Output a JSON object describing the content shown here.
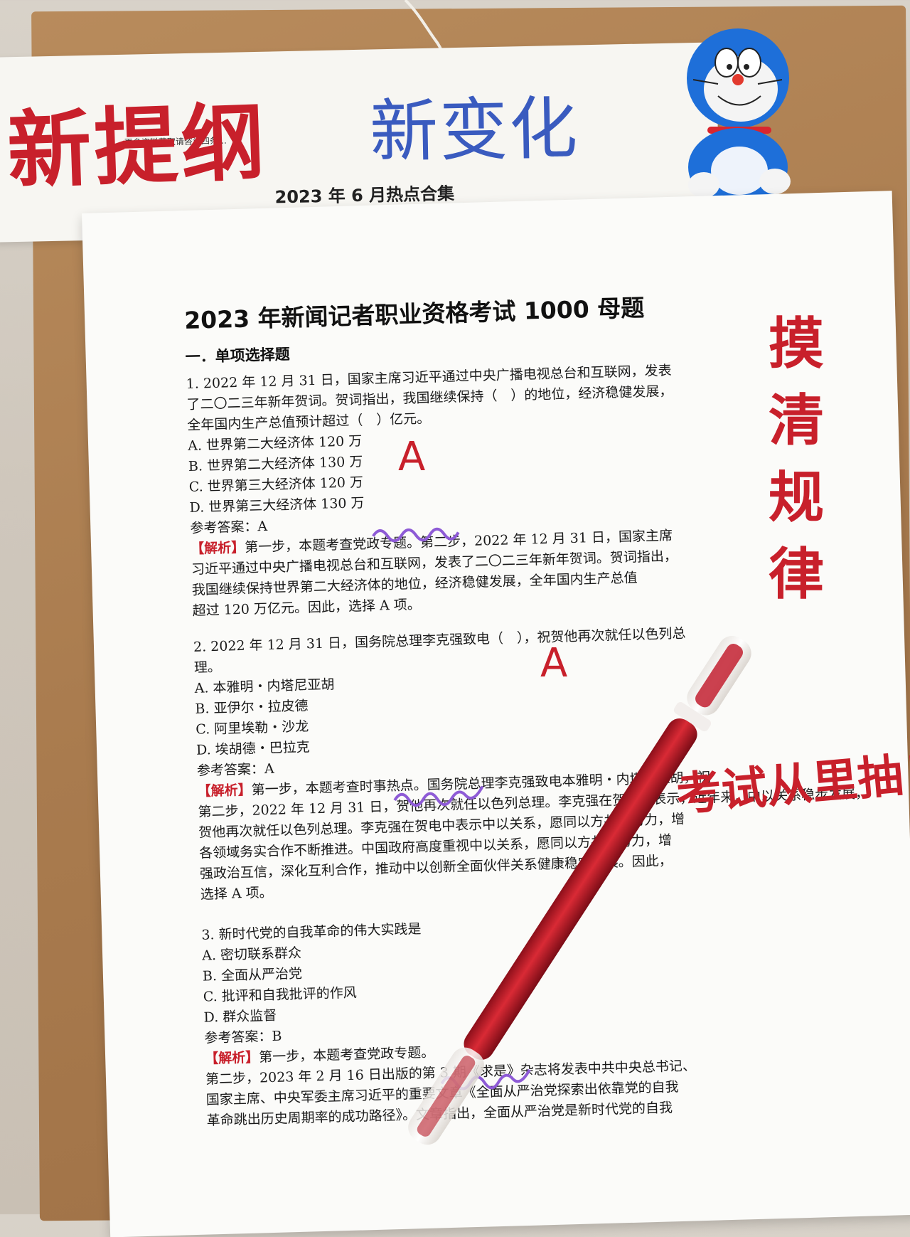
{
  "top_paper": {
    "small_line": "更多资料获取请咨询四条…",
    "subtitle": "2023 年 6 月热点合集"
  },
  "handwriting": {
    "red_title": "新提纲",
    "blue_title": "新变化",
    "vertical": [
      "摸",
      "清",
      "规",
      "律"
    ],
    "exam": "考试从里抽！",
    "answer_marks": [
      "A",
      "A"
    ]
  },
  "document": {
    "title": "2023 年新闻记者职业资格考试 1000 母题",
    "section": "一．单项选择题",
    "q1": {
      "stem": [
        "1. 2022 年 12 月 31 日，国家主席习近平通过中央广播电视总台和互联网，发表",
        "了二〇二三年新年贺词。贺词指出，我国继续保持（　）的地位，经济稳健发展，",
        "全年国内生产总值预计超过（　）亿元。"
      ],
      "options": [
        "A. 世界第二大经济体 120 万",
        "B. 世界第二大经济体 130 万",
        "C. 世界第三大经济体 120 万",
        "D. 世界第三大经济体 130 万"
      ],
      "answer": "参考答案：A",
      "analysis_tag": "【解析】",
      "analysis": [
        "第一步，本题考查党政专题。第二步，2022 年 12 月 31 日，国家主席",
        "习近平通过中央广播电视总台和互联网，发表了二〇二三年新年贺词。贺词指出，",
        "我国继续保持世界第二大经济体的地位，经济稳健发展，全年国内生产总值",
        "超过 120 万亿元。因此，选择 A 项。"
      ]
    },
    "q2": {
      "stem": [
        "2. 2022 年 12 月 31 日，国务院总理李克强致电（　），祝贺他再次就任以色列总",
        "理。"
      ],
      "options": [
        "A. 本雅明・内塔尼亚胡",
        "B. 亚伊尔・拉皮德",
        "C. 阿里埃勒・沙龙",
        "D. 埃胡德・巴拉克"
      ],
      "answer": "参考答案：A",
      "analysis_tag": "【解析】",
      "analysis": [
        "第一步，本题考查时事热点。国务院总理李克强致电本雅明・内塔尼亚胡，祝",
        "第二步，2022 年 12 月 31 日，贺他再次就任以色列总理。李克强在贺电中表示，近年来，中以关系稳步发展，",
        "贺他再次就任以色列总理。李克强在贺电中表示中以关系，愿同以方共同努力，增",
        "各领域务实合作不断推进。中国政府高度重视中以关系，愿同以方共同努力，增",
        "强政治互信，深化互利合作，推动中以创新全面伙伴关系健康稳定发展。因此，",
        "选择 A 项。"
      ]
    },
    "q3": {
      "stem": [
        "3. 新时代党的自我革命的伟大实践是"
      ],
      "options": [
        "A. 密切联系群众",
        "B. 全面从严治党",
        "C. 批评和自我批评的作风",
        "D. 群众监督"
      ],
      "answer": "参考答案：B",
      "analysis_tag": "【解析】",
      "analysis": [
        "第一步，本题考查党政专题。",
        "第二步，2023 年 2 月 16 日出版的第 3 期《求是》杂志将发表中共中央总书记、",
        "国家主席、中央军委主席习近平的重要文章《全面从严治党探索出依靠党的自我",
        "革命跳出历史周期率的成功路径》。文章指出，全面从严治党是新时代党的自我"
      ]
    }
  }
}
